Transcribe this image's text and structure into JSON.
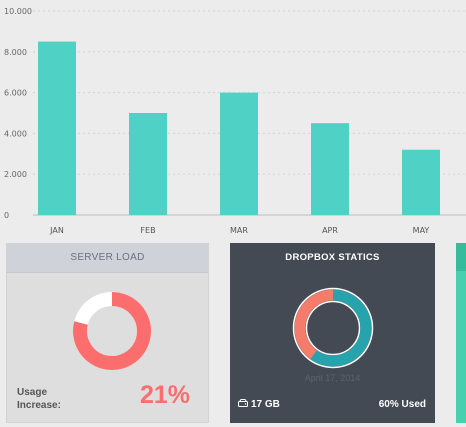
{
  "chart_data": {
    "type": "bar",
    "categories": [
      "JAN",
      "FEB",
      "MAR",
      "APR",
      "MAY"
    ],
    "values": [
      8500,
      5000,
      6000,
      4500,
      3200
    ],
    "ylim": [
      0,
      10000
    ],
    "yticks": [
      "0",
      "2.000",
      "4.000",
      "6.000",
      "8.000",
      "10.000"
    ],
    "grid": true,
    "bar_color": "#4fd1c5"
  },
  "server_load": {
    "title": "SERVER LOAD",
    "usage_label_line1": "Usage",
    "usage_label_line2": "Increase:",
    "percent": 0.79,
    "value": "21%",
    "colors": {
      "fill": "#fc6e6e",
      "track": "#ffffff"
    }
  },
  "dropbox": {
    "title": "DROPBOX STATICS",
    "date": "April 17, 2014",
    "size": "17 GB",
    "used": "60% Used",
    "percent": 0.6,
    "colors": {
      "used": "#26a3ad",
      "free": "#f47c6b",
      "ring_border": "#ffffff"
    }
  },
  "icons": {
    "storage": "hdd-icon"
  }
}
